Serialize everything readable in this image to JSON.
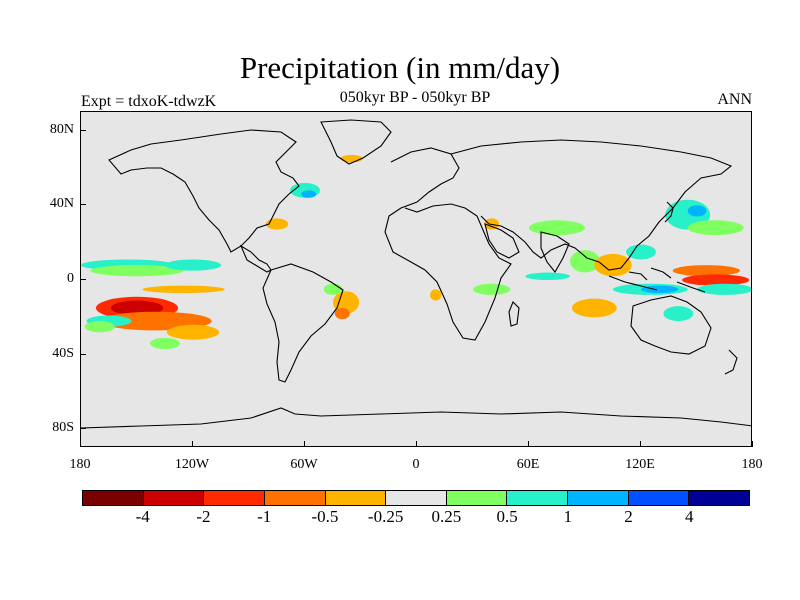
{
  "title": "Precipitation (in mm/day)",
  "subtitle": "050kyr BP - 050kyr BP",
  "left_label": "Expt = tdxoK-tdwzK",
  "right_label": "ANN",
  "y_axis": {
    "ticks": [
      {
        "lat": 80,
        "label": "80N"
      },
      {
        "lat": 40,
        "label": "40N"
      },
      {
        "lat": 0,
        "label": "0"
      },
      {
        "lat": -40,
        "label": "40S"
      },
      {
        "lat": -80,
        "label": "80S"
      }
    ]
  },
  "x_axis": {
    "ticks": [
      {
        "lon": -180,
        "label": "180"
      },
      {
        "lon": -120,
        "label": "120W"
      },
      {
        "lon": -60,
        "label": "60W"
      },
      {
        "lon": 0,
        "label": "0"
      },
      {
        "lon": 60,
        "label": "60E"
      },
      {
        "lon": 120,
        "label": "120E"
      },
      {
        "lon": 180,
        "label": "180"
      }
    ]
  },
  "colorbar": {
    "colors": [
      "#7b0000",
      "#cc0000",
      "#ff2a00",
      "#ff7200",
      "#ffb400",
      "#e6e6e6",
      "#80ff60",
      "#28f0c8",
      "#00b4ff",
      "#0050ff",
      "#000096"
    ],
    "labels": [
      "-4",
      "-2",
      "-1",
      "-0.5",
      "-0.25",
      "0.25",
      "0.5",
      "1",
      "2",
      "4"
    ]
  },
  "map": {
    "background": "#e6e6e6",
    "coastline_color": "#000000",
    "patches": [
      {
        "lon": -150,
        "lat": -15,
        "rx": 22,
        "ry": 6,
        "level": 2
      },
      {
        "lon": -150,
        "lat": -15,
        "rx": 14,
        "ry": 4,
        "level": 1
      },
      {
        "lon": -140,
        "lat": -22,
        "rx": 30,
        "ry": 5,
        "level": 3
      },
      {
        "lon": -120,
        "lat": -28,
        "rx": 14,
        "ry": 4,
        "level": 4
      },
      {
        "lon": -165,
        "lat": -22,
        "rx": 12,
        "ry": 3,
        "level": 7
      },
      {
        "lon": -170,
        "lat": -25,
        "rx": 8,
        "ry": 3,
        "level": 6
      },
      {
        "lon": -155,
        "lat": 8,
        "rx": 25,
        "ry": 3,
        "level": 7
      },
      {
        "lon": -150,
        "lat": 5,
        "rx": 25,
        "ry": 3,
        "level": 6
      },
      {
        "lon": -120,
        "lat": 8,
        "rx": 15,
        "ry": 3,
        "level": 7
      },
      {
        "lon": -125,
        "lat": -5,
        "rx": 22,
        "ry": 2,
        "level": 4
      },
      {
        "lon": -135,
        "lat": -34,
        "rx": 8,
        "ry": 3,
        "level": 6
      },
      {
        "lon": -75,
        "lat": 30,
        "rx": 6,
        "ry": 3,
        "level": 4
      },
      {
        "lon": -60,
        "lat": 48,
        "rx": 8,
        "ry": 4,
        "level": 7
      },
      {
        "lon": -58,
        "lat": 46,
        "rx": 4,
        "ry": 2,
        "level": 8
      },
      {
        "lon": -38,
        "lat": -12,
        "rx": 7,
        "ry": 6,
        "level": 4
      },
      {
        "lon": -40,
        "lat": -18,
        "rx": 4,
        "ry": 3,
        "level": 3
      },
      {
        "lon": -45,
        "lat": -5,
        "rx": 5,
        "ry": 3,
        "level": 6
      },
      {
        "lon": -35,
        "lat": 65,
        "rx": 6,
        "ry": 2,
        "level": 4
      },
      {
        "lon": 10,
        "lat": -8,
        "rx": 3,
        "ry": 3,
        "level": 4
      },
      {
        "lon": 40,
        "lat": -5,
        "rx": 10,
        "ry": 3,
        "level": 6
      },
      {
        "lon": 70,
        "lat": 2,
        "rx": 12,
        "ry": 2,
        "level": 7
      },
      {
        "lon": 75,
        "lat": 28,
        "rx": 15,
        "ry": 4,
        "level": 6
      },
      {
        "lon": 90,
        "lat": 10,
        "rx": 8,
        "ry": 6,
        "level": 6
      },
      {
        "lon": 105,
        "lat": 8,
        "rx": 10,
        "ry": 6,
        "level": 4
      },
      {
        "lon": 120,
        "lat": 15,
        "rx": 8,
        "ry": 4,
        "level": 7
      },
      {
        "lon": 125,
        "lat": -5,
        "rx": 20,
        "ry": 3,
        "level": 7
      },
      {
        "lon": 130,
        "lat": -5,
        "rx": 10,
        "ry": 2,
        "level": 8
      },
      {
        "lon": 155,
        "lat": 5,
        "rx": 18,
        "ry": 3,
        "level": 3
      },
      {
        "lon": 160,
        "lat": 0,
        "rx": 18,
        "ry": 3,
        "level": 2
      },
      {
        "lon": 165,
        "lat": -5,
        "rx": 15,
        "ry": 3,
        "level": 7
      },
      {
        "lon": 145,
        "lat": 35,
        "rx": 12,
        "ry": 8,
        "level": 7
      },
      {
        "lon": 150,
        "lat": 37,
        "rx": 5,
        "ry": 3,
        "level": 8
      },
      {
        "lon": 160,
        "lat": 28,
        "rx": 15,
        "ry": 4,
        "level": 6
      },
      {
        "lon": 95,
        "lat": -15,
        "rx": 12,
        "ry": 5,
        "level": 4
      },
      {
        "lon": 140,
        "lat": -18,
        "rx": 8,
        "ry": 4,
        "level": 7
      },
      {
        "lon": 40,
        "lat": 30,
        "rx": 4,
        "ry": 3,
        "level": 4
      }
    ]
  }
}
